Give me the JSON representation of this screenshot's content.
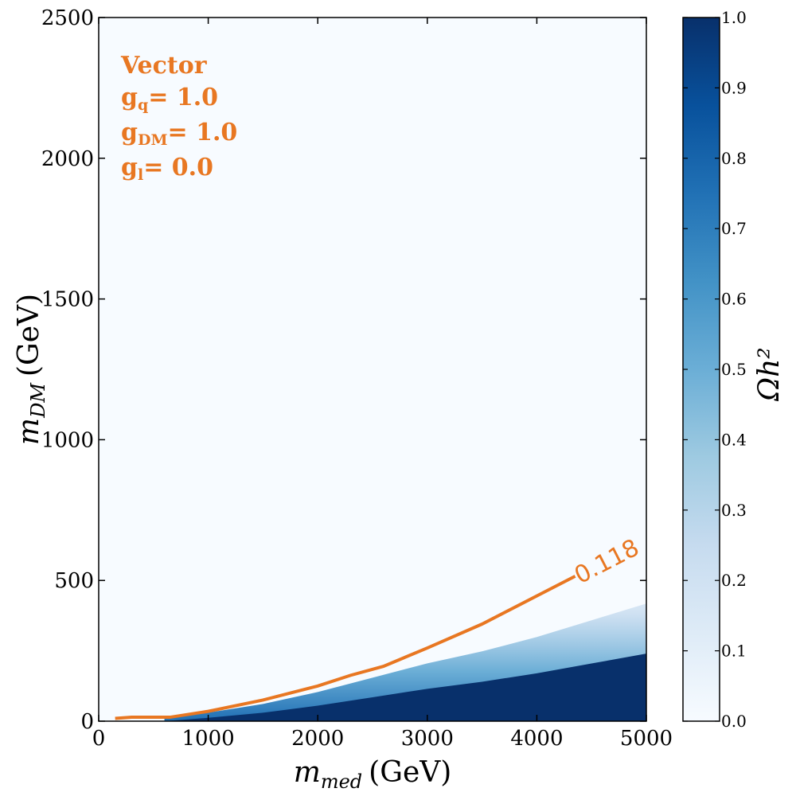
{
  "chart_data": {
    "type": "heatmap",
    "title": "",
    "x": {
      "label_main": "m",
      "label_sub": "med",
      "label_unit": "(GeV)",
      "range": [
        0,
        5000
      ],
      "ticks": [
        0,
        1000,
        2000,
        3000,
        4000,
        5000
      ],
      "tick_labels": [
        "0",
        "1000",
        "2000",
        "3000",
        "4000",
        "5000"
      ]
    },
    "y": {
      "label_main": "m",
      "label_sub": "DM",
      "label_unit": "(GeV)",
      "range": [
        0,
        2500
      ],
      "ticks": [
        0,
        500,
        1000,
        1500,
        2000,
        2500
      ],
      "tick_labels": [
        "0",
        "500",
        "1000",
        "1500",
        "2000",
        "2500"
      ]
    },
    "colorbar": {
      "label": "Ωh²",
      "range": [
        0.0,
        1.0
      ],
      "ticks": [
        "0.0",
        "0.1",
        "0.2",
        "0.3",
        "0.4",
        "0.5",
        "0.6",
        "0.7",
        "0.8",
        "0.9",
        "1.0"
      ],
      "colormap": "Blues",
      "color_low": "#f7fbff",
      "color_high": "#08306b"
    },
    "contour": {
      "level_label": "0.118",
      "color": "#e87722",
      "points": [
        [
          150,
          10
        ],
        [
          300,
          14
        ],
        [
          650,
          14
        ],
        [
          1000,
          35
        ],
        [
          1500,
          75
        ],
        [
          2000,
          125
        ],
        [
          2300,
          163
        ],
        [
          2600,
          195
        ],
        [
          3000,
          260
        ],
        [
          3500,
          345
        ],
        [
          4000,
          445
        ],
        [
          4350,
          515
        ]
      ]
    },
    "saturated_boundary": [
      [
        600,
        0
      ],
      [
        1000,
        12
      ],
      [
        1500,
        30
      ],
      [
        2000,
        55
      ],
      [
        2500,
        85
      ],
      [
        3000,
        115
      ],
      [
        3500,
        140
      ],
      [
        4000,
        170
      ],
      [
        4500,
        205
      ],
      [
        5000,
        240
      ]
    ],
    "annotations": {
      "model": "Vector",
      "gq_main": "g",
      "gq_sub": "q",
      "gq_val": "= 1.0",
      "gdm_main": "g",
      "gdm_sub": "DM",
      "gdm_val": "= 1.0",
      "gl_main": "g",
      "gl_sub": "l",
      "gl_val": "= 0.0"
    }
  }
}
